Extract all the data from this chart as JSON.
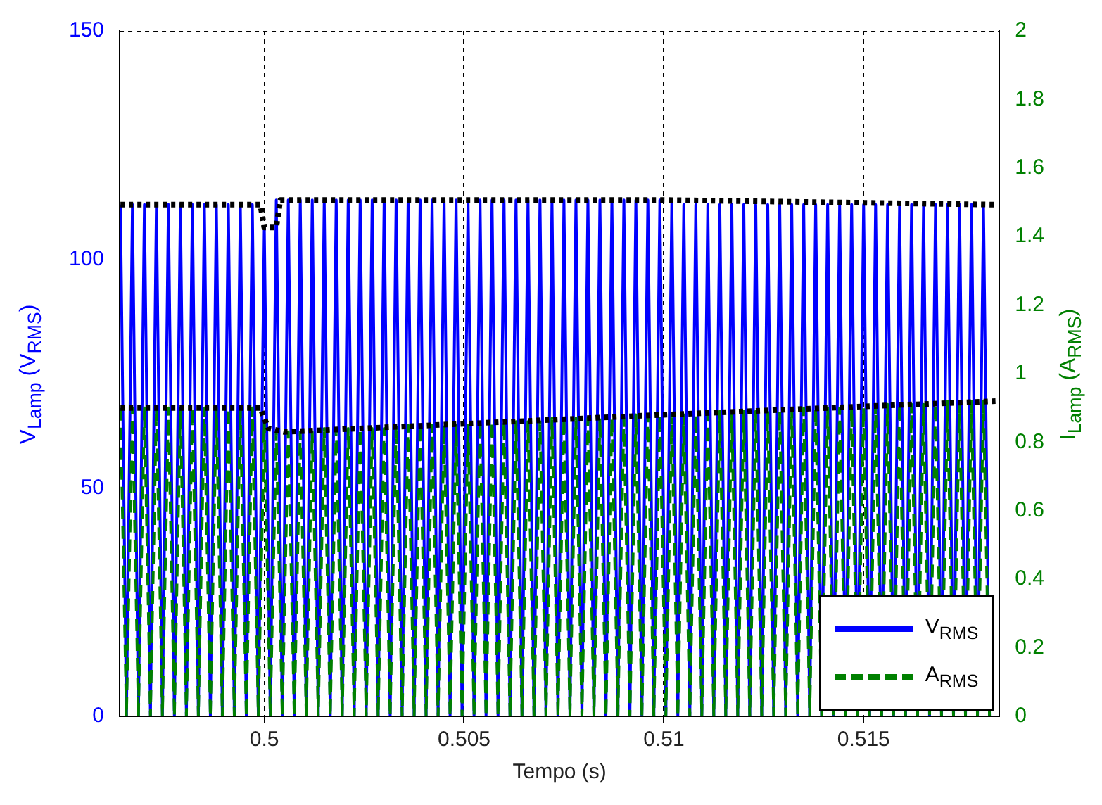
{
  "chart_data": {
    "type": "line",
    "xlabel": "Tempo (s)",
    "ylabel": "V$_{Lamp}$ (V$_{RMS}$)",
    "y2label": "I$_{Lamp}$ (A$_{RMS}$)",
    "x": [
      0.4964,
      0.49655,
      0.4967,
      0.49685,
      0.497,
      0.49715,
      0.4973,
      0.49745,
      0.4976,
      0.49775,
      0.4979,
      0.49805,
      0.4982,
      0.49835,
      0.4985,
      0.49865,
      0.4988,
      0.49895,
      0.4991,
      0.49925,
      0.4994,
      0.49955,
      0.4997,
      0.49985,
      0.5,
      0.50015,
      0.5003,
      0.50045,
      0.5006,
      0.50075,
      0.5009,
      0.50105,
      0.5012,
      0.50135,
      0.5015,
      0.50165,
      0.5018,
      0.50195,
      0.5021,
      0.50225,
      0.5024,
      0.50255,
      0.5027,
      0.50285,
      0.503,
      0.50315,
      0.5033,
      0.50345,
      0.5036,
      0.50375,
      0.5039,
      0.50405,
      0.5042,
      0.50435,
      0.5045,
      0.50465,
      0.5048,
      0.50495,
      0.5051,
      0.50525,
      0.5054,
      0.50555,
      0.5057,
      0.50585,
      0.506,
      0.50615,
      0.5063,
      0.50645,
      0.5066,
      0.50675,
      0.5069,
      0.50705,
      0.5072,
      0.50735,
      0.5075,
      0.50765,
      0.5078,
      0.50795,
      0.5081,
      0.50825,
      0.5084,
      0.50855,
      0.5087,
      0.50885,
      0.509,
      0.50915,
      0.5093,
      0.50945,
      0.5096,
      0.50975,
      0.5099,
      0.51005,
      0.5102,
      0.51035,
      0.5105,
      0.51065,
      0.5108,
      0.51095,
      0.5111,
      0.51125,
      0.5114,
      0.51155,
      0.5117,
      0.51185,
      0.512,
      0.51215,
      0.5123,
      0.51245,
      0.5126,
      0.51275,
      0.5129,
      0.51305,
      0.5132,
      0.51335,
      0.5135,
      0.51365,
      0.5138,
      0.51395,
      0.5141,
      0.51425,
      0.5144,
      0.51455,
      0.5147,
      0.51485,
      0.515,
      0.51515,
      0.5153,
      0.51545,
      0.5156,
      0.51575,
      0.5159,
      0.51605,
      0.5162,
      0.51635,
      0.5165,
      0.51665,
      0.5168,
      0.51695,
      0.5171,
      0.51725,
      0.5174,
      0.51755,
      0.5177,
      0.51785,
      0.518,
      0.51815
    ],
    "series": [
      {
        "name": "V$_{RMS}$",
        "color": "#0000ff",
        "line_style": "solid",
        "values": [
          112,
          0,
          112,
          0,
          112,
          0,
          112,
          0,
          112,
          0,
          112,
          0,
          112,
          0,
          112,
          0,
          112,
          0,
          112,
          0,
          112,
          0,
          112,
          0,
          107,
          0,
          113,
          0,
          113,
          0,
          113,
          0,
          113,
          0,
          113,
          0,
          113,
          0,
          113,
          0,
          113,
          0,
          113,
          0,
          113,
          0,
          113,
          0,
          113,
          0,
          113,
          0,
          113,
          0,
          113,
          0,
          113,
          0,
          113,
          0,
          113,
          0,
          113,
          0,
          113,
          0,
          113,
          0,
          113,
          0,
          113,
          0,
          113,
          0,
          113,
          0,
          113,
          0,
          113,
          0,
          113,
          0,
          113,
          0,
          113,
          0,
          113,
          0,
          113,
          0,
          113,
          0,
          113,
          0,
          112,
          0,
          112,
          0,
          112,
          0,
          112,
          0,
          112,
          0,
          112,
          0,
          112,
          0,
          112,
          0,
          112,
          0,
          112,
          0,
          112,
          0,
          112,
          0,
          112,
          0,
          112,
          0,
          112,
          0,
          112,
          0,
          112,
          0,
          112,
          0,
          112,
          0,
          112,
          0,
          112,
          0,
          112,
          0,
          112,
          0,
          112,
          0,
          112,
          0,
          112,
          0
        ]
      },
      {
        "name": "A$_{RMS}$",
        "color": "#008000",
        "line_style": "dashed",
        "axis": "y2",
        "values": [
          0.9,
          0,
          0.9,
          0,
          0.9,
          0,
          0.9,
          0,
          0.9,
          0,
          0.9,
          0,
          0.9,
          0,
          0.9,
          0,
          0.9,
          0,
          0.9,
          0,
          0.9,
          0,
          0.9,
          0,
          0.86,
          0,
          0.83,
          0,
          0.83,
          0,
          0.83,
          0,
          0.83,
          0,
          0.84,
          0,
          0.84,
          0,
          0.84,
          0,
          0.84,
          0,
          0.84,
          0,
          0.84,
          0,
          0.85,
          0,
          0.85,
          0,
          0.85,
          0,
          0.85,
          0,
          0.85,
          0,
          0.85,
          0,
          0.85,
          0,
          0.86,
          0,
          0.86,
          0,
          0.86,
          0,
          0.86,
          0,
          0.86,
          0,
          0.86,
          0,
          0.87,
          0,
          0.87,
          0,
          0.87,
          0,
          0.87,
          0,
          0.87,
          0,
          0.87,
          0,
          0.87,
          0,
          0.88,
          0,
          0.88,
          0,
          0.88,
          0,
          0.88,
          0,
          0.88,
          0,
          0.88,
          0,
          0.88,
          0,
          0.89,
          0,
          0.89,
          0,
          0.89,
          0,
          0.89,
          0,
          0.89,
          0,
          0.89,
          0,
          0.9,
          0,
          0.9,
          0,
          0.9,
          0,
          0.9,
          0,
          0.9,
          0,
          0.9,
          0,
          0.9,
          0,
          0.91,
          0,
          0.91,
          0,
          0.91,
          0,
          0.91,
          0,
          0.91,
          0,
          0.91,
          0,
          0.92,
          0,
          0.92,
          0,
          0.92,
          0,
          0.92,
          0
        ]
      },
      {
        "color": "#000000",
        "line_style": "dotted",
        "x": [
          0.4964,
          0.4999,
          0.5,
          0.5003,
          0.5004,
          0.51,
          0.5183
        ],
        "values": [
          112,
          112,
          107,
          107,
          113,
          113,
          112
        ]
      },
      {
        "color": "#000000",
        "line_style": "dotted",
        "axis": "y2",
        "x": [
          0.4964,
          0.4999,
          0.5001,
          0.5005,
          0.51,
          0.5183
        ],
        "values": [
          0.9,
          0.9,
          0.84,
          0.83,
          0.88,
          0.92
        ]
      }
    ],
    "xlim": [
      0.49638,
      0.5184
    ],
    "xticks": [
      0.5,
      0.505,
      0.51,
      0.515
    ],
    "ylim": [
      0,
      150
    ],
    "yticks": [
      0,
      50,
      100,
      150
    ],
    "y2lim": [
      0,
      2
    ],
    "y2ticks": [
      0,
      0.2,
      0.4,
      0.6,
      0.8,
      1,
      1.2,
      1.4,
      1.6,
      1.8,
      2
    ],
    "grid": "x",
    "legend": "bottom right"
  }
}
